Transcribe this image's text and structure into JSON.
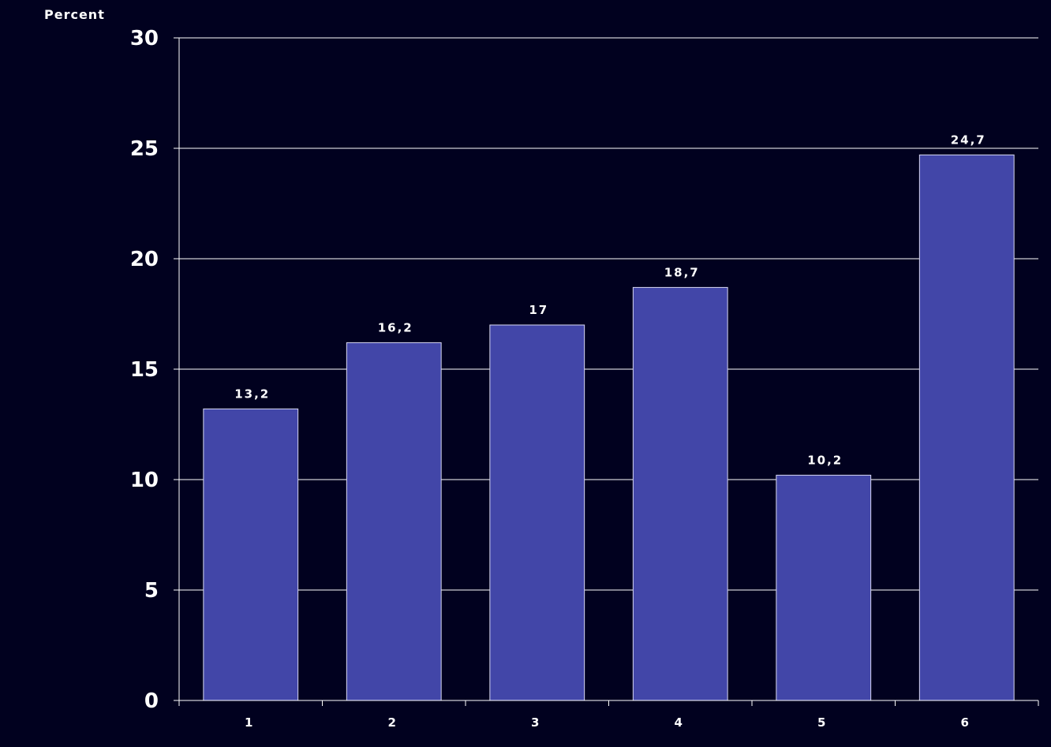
{
  "chart_data": {
    "type": "bar",
    "ylabel": "Percent",
    "xlabel": "",
    "categories": [
      "1",
      "2",
      "3",
      "4",
      "5",
      "6"
    ],
    "values": [
      13.2,
      16.2,
      17,
      18.7,
      10.2,
      24.7
    ],
    "data_labels": [
      "13,2",
      "16,2",
      "17",
      "18,7",
      "10,2",
      "24,7"
    ],
    "ylim": [
      0,
      30
    ],
    "yticks": [
      0,
      5,
      10,
      15,
      20,
      25,
      30
    ],
    "grid": true,
    "legend": "none",
    "colors": {
      "background": "#01011f",
      "bar": "#4246a8",
      "bar_edge": "#d8d8f0",
      "grid": "#ffffff",
      "text": "#ffffff"
    }
  }
}
